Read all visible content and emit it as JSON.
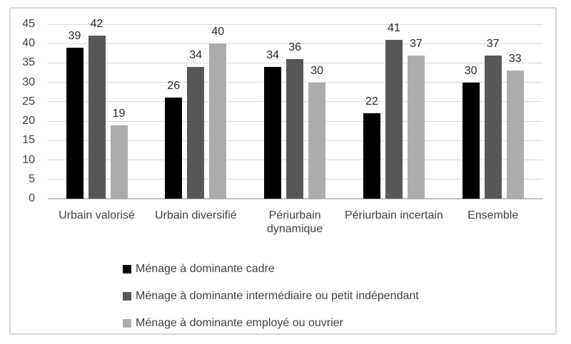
{
  "chart_data": {
    "type": "bar",
    "categories": [
      "Urbain valorisé",
      "Urbain diversifié",
      "Périurbain dynamique",
      "Périurbain incertain",
      "Ensemble"
    ],
    "series": [
      {
        "name": "Ménage à dominante cadre",
        "color": "#000000",
        "values": [
          39,
          26,
          34,
          22,
          30
        ]
      },
      {
        "name": "Ménage à dominante intermédiaire ou petit indépendant",
        "color": "#575757",
        "values": [
          42,
          34,
          36,
          41,
          37
        ]
      },
      {
        "name": "Ménage à dominante employé ou ouvrier",
        "color": "#acacac",
        "values": [
          19,
          40,
          30,
          37,
          33
        ]
      }
    ],
    "title": "",
    "xlabel": "",
    "ylabel": "",
    "ylim": [
      0,
      45
    ],
    "ytick_step": 5,
    "yticks": [
      "0",
      "5",
      "10",
      "15",
      "20",
      "25",
      "30",
      "35",
      "40",
      "45"
    ],
    "grid": true,
    "data_labels": true,
    "legend_position": "bottom-left"
  },
  "style": {
    "grid_color": "#d9d9d9",
    "axis_color": "#bfbfbf",
    "text_color": "#404040",
    "frame_border_color": "#d7d7d7",
    "background": "#ffffff"
  }
}
